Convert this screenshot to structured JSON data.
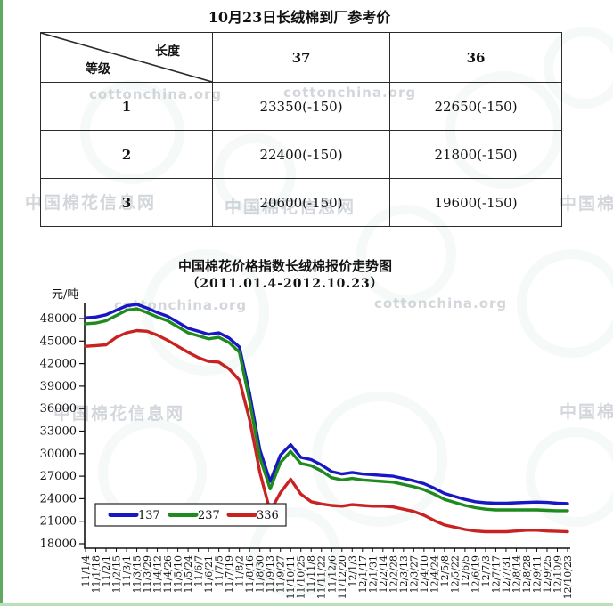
{
  "watermarks": {
    "en": "cottonchina.org",
    "cn": "中国棉花信息网"
  },
  "table": {
    "title": "10月23日长绒棉到厂参考价",
    "header": {
      "corner_row": "等级",
      "corner_col": "长度",
      "col37": "37",
      "col36": "36"
    },
    "rows": [
      {
        "grade": "1",
        "v37": "23350(-150)",
        "v36": "22650(-150)"
      },
      {
        "grade": "2",
        "v37": "22400(-150)",
        "v36": "21800(-150)"
      },
      {
        "grade": "3",
        "v37": "20600(-150)",
        "v36": "19600(-150)"
      }
    ]
  },
  "chart_data": {
    "type": "line",
    "title": "中国棉花价格指数长绒棉报价走势图",
    "subtitle": "（2011.01.4-2012.10.23）",
    "ylabel": "元/吨",
    "ylim": [
      18000,
      48000
    ],
    "ytick_step": 3000,
    "grid": false,
    "legend_position": "inside-bottom-left",
    "x": [
      "11/1/4",
      "11/1/18",
      "11/2/1",
      "11/2/15",
      "11/3/1",
      "11/3/15",
      "11/3/29",
      "11/4/12",
      "11/4/26",
      "11/5/10",
      "11/5/24",
      "11/6/7",
      "11/6/21",
      "11/7/5",
      "11/7/19",
      "11/8/2",
      "11/8/16",
      "11/8/30",
      "11/9/13",
      "11/9/27",
      "11/10/11",
      "11/10/25",
      "11/11/8",
      "11/11/22",
      "11/12/6",
      "11/12/20",
      "12/1/3",
      "12/1/17",
      "12/1/31",
      "12/2/14",
      "12/2/28",
      "12/3/13",
      "12/3/27",
      "12/4/10",
      "12/4/24",
      "12/5/8",
      "12/5/22",
      "12/6/5",
      "12/6/19",
      "12/7/3",
      "12/7/17",
      "12/7/31",
      "12/8/14",
      "12/8/28",
      "12/9/11",
      "12/9/25",
      "12/10/9",
      "12/10/23"
    ],
    "series": [
      {
        "name": "137",
        "color": "#1717c4",
        "values": [
          48100,
          48200,
          48500,
          49100,
          49700,
          49900,
          49400,
          48800,
          48300,
          47500,
          46700,
          46300,
          45900,
          46100,
          45400,
          44200,
          38000,
          30500,
          26300,
          29800,
          31200,
          29500,
          29200,
          28500,
          27600,
          27300,
          27500,
          27300,
          27200,
          27100,
          27000,
          26700,
          26400,
          26000,
          25400,
          24700,
          24300,
          23900,
          23600,
          23450,
          23400,
          23400,
          23450,
          23500,
          23550,
          23500,
          23400,
          23350
        ]
      },
      {
        "name": "237",
        "color": "#1f8b1f",
        "values": [
          47300,
          47400,
          47700,
          48400,
          49100,
          49300,
          48800,
          48200,
          47700,
          46900,
          46100,
          45700,
          45300,
          45500,
          44800,
          43500,
          37000,
          29500,
          25300,
          28800,
          30300,
          28700,
          28400,
          27700,
          26800,
          26500,
          26700,
          26500,
          26400,
          26300,
          26200,
          25900,
          25600,
          25200,
          24600,
          23900,
          23500,
          23100,
          22800,
          22600,
          22500,
          22500,
          22500,
          22500,
          22500,
          22450,
          22400,
          22400
        ]
      },
      {
        "name": "336",
        "color": "#c92222",
        "values": [
          44300,
          44400,
          44500,
          45500,
          46100,
          46400,
          46300,
          45800,
          45100,
          44300,
          43500,
          42800,
          42300,
          42200,
          41300,
          39800,
          34500,
          27500,
          22300,
          24800,
          26600,
          24600,
          23600,
          23300,
          23100,
          23000,
          23200,
          23100,
          23000,
          23000,
          22900,
          22600,
          22300,
          21800,
          21100,
          20500,
          20200,
          19900,
          19700,
          19600,
          19600,
          19600,
          19700,
          19800,
          19800,
          19700,
          19650,
          19600
        ]
      }
    ]
  }
}
